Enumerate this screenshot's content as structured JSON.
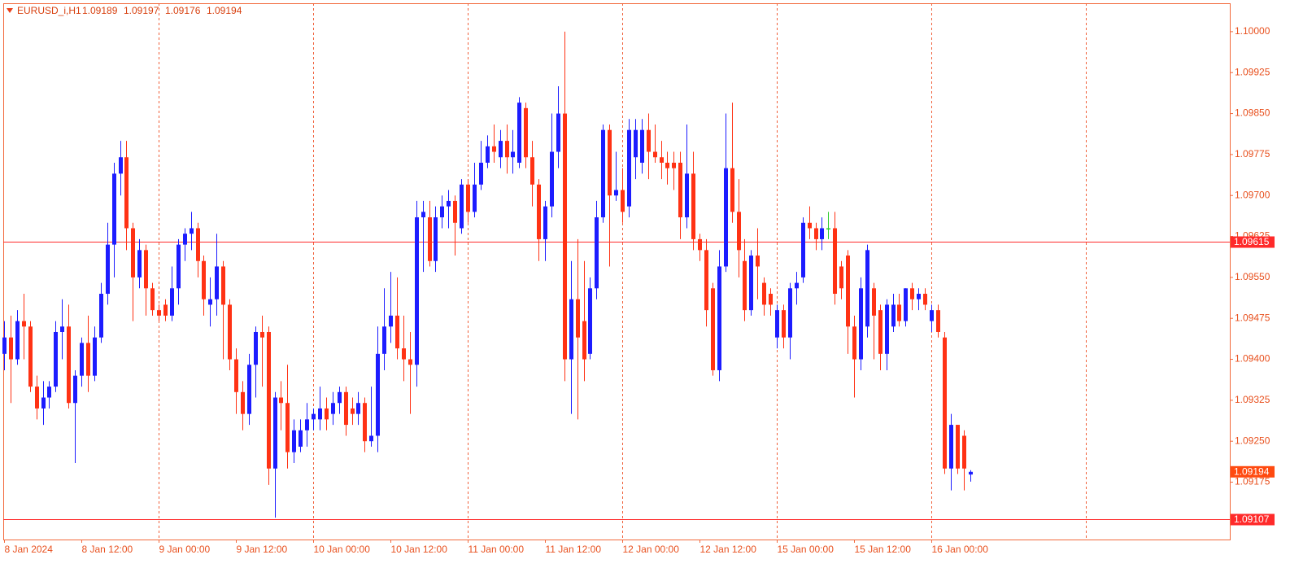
{
  "chart_data": {
    "type": "candlestick",
    "title": "EURUSD_i,H1",
    "header_ohlc": [
      1.09189,
      1.09197,
      1.09176,
      1.09194
    ],
    "up_color": "#1c1cff",
    "down_color": "#ff3214",
    "doji_color": "#2ecc2e",
    "grid": true,
    "ylim": [
      1.0907,
      1.10052
    ],
    "yticks": [
      1.09175,
      {
        "value": 1.0925,
        "label": "1.09250"
      },
      1.09325,
      {
        "value": 1.094,
        "label": "1.09400"
      },
      1.09475,
      {
        "value": 1.0955,
        "label": "1.09550"
      },
      1.09625,
      {
        "value": 1.097,
        "label": "1.09700"
      },
      1.09775,
      {
        "value": 1.0985,
        "label": "1.09850"
      },
      1.09925,
      {
        "value": 1.1,
        "label": "1.10000"
      }
    ],
    "hlines": [
      1.09615,
      1.09107
    ],
    "last_price": 1.09194,
    "categories": [
      "8 Jan 2024",
      null,
      null,
      null,
      null,
      null,
      null,
      null,
      null,
      null,
      null,
      null,
      "8 Jan 12:00",
      null,
      null,
      null,
      null,
      null,
      null,
      null,
      null,
      null,
      null,
      null,
      "9 Jan 00:00",
      null,
      null,
      null,
      null,
      null,
      null,
      null,
      null,
      null,
      null,
      null,
      "9 Jan 12:00",
      null,
      null,
      null,
      null,
      null,
      null,
      null,
      null,
      null,
      null,
      null,
      "10 Jan 00:00",
      null,
      null,
      null,
      null,
      null,
      null,
      null,
      null,
      null,
      null,
      null,
      "10 Jan 12:00",
      null,
      null,
      null,
      null,
      null,
      null,
      null,
      null,
      null,
      null,
      null,
      "11 Jan 00:00",
      null,
      null,
      null,
      null,
      null,
      null,
      null,
      null,
      null,
      null,
      null,
      "11 Jan 12:00",
      null,
      null,
      null,
      null,
      null,
      null,
      null,
      null,
      null,
      null,
      null,
      "12 Jan 00:00",
      null,
      null,
      null,
      null,
      null,
      null,
      null,
      null,
      null,
      null,
      null,
      "12 Jan 12:00",
      null,
      null,
      null,
      null,
      null,
      null,
      null,
      null,
      null,
      null,
      null,
      "15 Jan 00:00",
      null,
      null,
      null,
      null,
      null,
      null,
      null,
      null,
      null,
      null,
      null,
      "15 Jan 12:00",
      null,
      null,
      null,
      null,
      null,
      null,
      null,
      null,
      null,
      null,
      null,
      "16 Jan 00:00",
      null,
      null,
      null,
      null,
      null,
      null
    ],
    "open": [
      1.0941,
      1.0944,
      1.094,
      1.0947,
      1.0946,
      1.0935,
      1.0931,
      1.0933,
      1.0935,
      1.0945,
      1.0946,
      1.0932,
      1.0937,
      1.0943,
      1.0937,
      1.0944,
      1.0952,
      1.0961,
      1.0974,
      1.0977,
      1.0964,
      1.0955,
      1.096,
      1.0953,
      1.0949,
      1.095,
      1.0948,
      1.0953,
      1.0961,
      1.0963,
      1.0964,
      1.0958,
      1.095,
      1.0951,
      1.0957,
      1.095,
      1.094,
      1.0934,
      1.093,
      1.0939,
      1.0945,
      1.0945,
      1.092,
      1.0933,
      1.0932,
      1.0923,
      1.0924,
      1.0927,
      1.0929,
      1.0929,
      1.0931,
      1.093,
      1.0932,
      1.0934,
      1.0931,
      1.093,
      1.0932,
      1.0925,
      1.0926,
      1.0941,
      1.0946,
      1.0948,
      1.0942,
      1.094,
      1.0939,
      1.0966,
      1.0966,
      1.0958,
      1.0966,
      1.0968,
      1.0969,
      1.0964,
      1.0972,
      1.0967,
      1.0972,
      1.0976,
      1.0979,
      1.0977,
      1.098,
      1.0977,
      1.0976,
      1.0986,
      1.0977,
      1.0972,
      1.0962,
      1.0968,
      1.0978,
      1.0985,
      1.094,
      1.0951,
      1.0947,
      1.0941,
      1.0953,
      1.0966,
      1.0982,
      1.097,
      1.0971,
      1.0968,
      1.0977,
      1.0976,
      1.0982,
      1.0978,
      1.0977,
      1.0976,
      1.0976,
      1.0976,
      1.0966,
      1.0974,
      1.0962,
      1.096,
      1.0953,
      1.0938,
      1.0957,
      1.0975,
      1.0967,
      1.0958,
      1.0949,
      1.0959,
      1.0954,
      1.0952,
      1.0944,
      1.0949,
      1.0944,
      1.0953,
      1.0955,
      1.0965,
      1.0964,
      1.0962,
      1.0964,
      1.0964,
      1.0957,
      1.0959,
      1.0946,
      1.094,
      1.0946,
      1.0953,
      1.0949,
      1.0941,
      1.0946,
      1.095,
      1.0947,
      1.0953,
      1.0951,
      1.0952,
      1.0947,
      1.0949,
      1.0944,
      1.092,
      1.0928,
      1.0926,
      1.09189
    ],
    "high": [
      1.0947,
      1.0948,
      1.0949,
      1.0952,
      1.0947,
      1.0937,
      1.0936,
      1.0936,
      1.0947,
      1.0951,
      1.095,
      1.0938,
      1.0944,
      1.0948,
      1.0946,
      1.0954,
      1.0965,
      1.0976,
      1.098,
      1.098,
      1.0965,
      1.0962,
      1.0961,
      1.0954,
      1.095,
      1.0951,
      1.0957,
      1.0962,
      1.0964,
      1.0967,
      1.0965,
      1.0959,
      1.0955,
      1.0963,
      1.0958,
      1.0951,
      1.0942,
      1.0936,
      1.0941,
      1.0946,
      1.0948,
      1.0946,
      1.0934,
      1.0936,
      1.0939,
      1.0929,
      1.0929,
      1.0932,
      1.0931,
      1.0935,
      1.0933,
      1.0934,
      1.0935,
      1.0935,
      1.0933,
      1.0934,
      1.0933,
      1.0935,
      1.0946,
      1.0953,
      1.0956,
      1.0955,
      1.0948,
      1.0945,
      1.0969,
      1.0969,
      1.0969,
      1.0968,
      1.097,
      1.0971,
      1.097,
      1.0973,
      1.0973,
      1.0976,
      1.098,
      1.0981,
      1.0983,
      1.0982,
      1.0983,
      1.0982,
      1.0988,
      1.0987,
      1.098,
      1.0973,
      1.0969,
      1.0985,
      1.099,
      1.1,
      1.0958,
      1.0962,
      1.0958,
      1.0955,
      1.0969,
      1.0983,
      1.0983,
      1.0978,
      1.0975,
      1.0984,
      1.0984,
      1.0984,
      1.0985,
      1.0983,
      1.098,
      1.0978,
      1.0978,
      1.0978,
      1.0983,
      1.0978,
      1.0963,
      1.0962,
      1.0954,
      1.096,
      1.0985,
      1.0987,
      1.0973,
      1.0962,
      1.096,
      1.0964,
      1.0955,
      1.0953,
      1.095,
      1.095,
      1.0954,
      1.0956,
      1.0966,
      1.0968,
      1.0965,
      1.0966,
      1.0967,
      1.0967,
      1.0958,
      1.096,
      1.0948,
      1.0955,
      1.0961,
      1.0954,
      1.095,
      1.0951,
      1.0952,
      1.0952,
      1.0953,
      1.0954,
      1.0953,
      1.0953,
      1.095,
      1.095,
      1.0945,
      1.093,
      1.0928,
      1.0927,
      1.09197
    ],
    "low": [
      1.0938,
      1.0932,
      1.0939,
      1.094,
      1.0934,
      1.0929,
      1.0928,
      1.0931,
      1.0934,
      1.094,
      1.0931,
      1.0921,
      1.0935,
      1.0934,
      1.0936,
      1.0943,
      1.095,
      1.0955,
      1.097,
      1.096,
      1.0947,
      1.0953,
      1.0948,
      1.0948,
      1.0947,
      1.0947,
      1.0947,
      1.095,
      1.0958,
      1.096,
      1.0955,
      1.0948,
      1.0946,
      1.0948,
      1.094,
      1.0938,
      1.093,
      1.0927,
      1.0928,
      1.0933,
      1.0935,
      1.0917,
      1.0911,
      1.0927,
      1.092,
      1.0921,
      1.0923,
      1.0924,
      1.0927,
      1.0927,
      1.0927,
      1.0928,
      1.093,
      1.0926,
      1.0928,
      1.0928,
      1.0923,
      1.0924,
      1.0923,
      1.0938,
      1.0943,
      1.094,
      1.0936,
      1.093,
      1.0935,
      1.0956,
      1.0957,
      1.0956,
      1.0964,
      1.0964,
      1.0959,
      1.0963,
      1.0965,
      1.0966,
      1.0971,
      1.0975,
      1.0976,
      1.0975,
      1.0974,
      1.0974,
      1.0975,
      1.0975,
      1.0968,
      1.0958,
      1.0958,
      1.0966,
      1.0975,
      1.0936,
      1.093,
      1.0929,
      1.0936,
      1.094,
      1.0951,
      1.0965,
      1.0957,
      1.0969,
      1.0965,
      1.0966,
      1.0973,
      1.0974,
      1.0973,
      1.0976,
      1.0973,
      1.0972,
      1.0971,
      1.0962,
      1.0964,
      1.096,
      1.0958,
      1.0946,
      1.0937,
      1.0936,
      1.0956,
      1.0965,
      1.0955,
      1.0947,
      1.0948,
      1.0951,
      1.0948,
      1.0948,
      1.0942,
      1.0942,
      1.094,
      1.095,
      1.0954,
      1.0962,
      1.096,
      1.096,
      1.0962,
      1.095,
      1.0951,
      1.0941,
      1.0933,
      1.0938,
      1.0944,
      1.094,
      1.0938,
      1.0938,
      1.0945,
      1.0946,
      1.0946,
      1.0949,
      1.0949,
      1.0949,
      1.0945,
      1.0944,
      1.0919,
      1.0916,
      1.0919,
      1.0916,
      1.09176
    ],
    "close": [
      1.0944,
      1.094,
      1.0947,
      1.0946,
      1.0935,
      1.0931,
      1.0933,
      1.0935,
      1.0945,
      1.0946,
      1.0932,
      1.0937,
      1.0943,
      1.0937,
      1.0944,
      1.0952,
      1.0961,
      1.0974,
      1.0977,
      1.0964,
      1.0955,
      1.096,
      1.0953,
      1.0949,
      1.0948,
      1.0948,
      1.0953,
      1.0961,
      1.0963,
      1.0964,
      1.0958,
      1.0951,
      1.0951,
      1.0957,
      1.095,
      1.094,
      1.0934,
      1.093,
      1.0939,
      1.0945,
      1.0944,
      1.092,
      1.0933,
      1.0932,
      1.0923,
      1.0927,
      1.0927,
      1.0929,
      1.093,
      1.0931,
      1.0929,
      1.0932,
      1.0934,
      1.0928,
      1.093,
      1.0932,
      1.0925,
      1.0926,
      1.0941,
      1.0946,
      1.0948,
      1.0942,
      1.094,
      1.0939,
      1.0966,
      1.0967,
      1.0958,
      1.0966,
      1.0968,
      1.0969,
      1.0965,
      1.0972,
      1.0967,
      1.0972,
      1.0976,
      1.0979,
      1.0978,
      1.098,
      1.0977,
      1.0978,
      1.0987,
      1.0977,
      1.0972,
      1.0962,
      1.0968,
      1.0978,
      1.0985,
      1.094,
      1.0951,
      1.0944,
      1.094,
      1.0953,
      1.0966,
      1.0982,
      1.097,
      1.0971,
      1.0967,
      1.0982,
      1.0982,
      1.0982,
      1.0978,
      1.0977,
      1.0976,
      1.0975,
      1.0975,
      1.0966,
      1.0974,
      1.0962,
      1.096,
      1.0949,
      1.0938,
      1.0957,
      1.0975,
      1.0967,
      1.096,
      1.0949,
      1.0959,
      1.0957,
      1.095,
      1.095,
      1.0949,
      1.0944,
      1.0953,
      1.0954,
      1.0965,
      1.0964,
      1.0962,
      1.0964,
      1.0964,
      1.0952,
      1.0953,
      1.0946,
      1.094,
      1.0953,
      1.096,
      1.0948,
      1.0941,
      1.095,
      1.095,
      1.0947,
      1.0953,
      1.0951,
      1.0952,
      1.095,
      1.0949,
      1.0945,
      1.092,
      1.0928,
      1.092,
      1.092,
      1.09194
    ]
  }
}
